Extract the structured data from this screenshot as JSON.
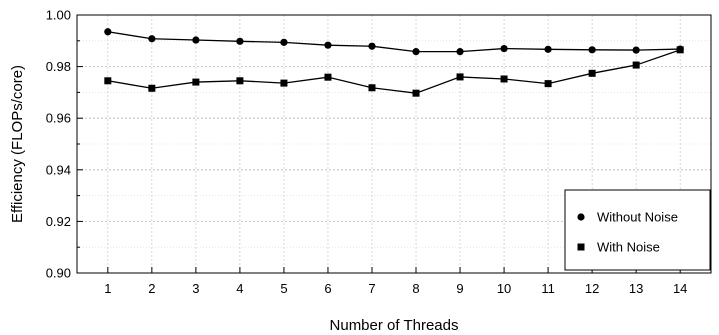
{
  "chart_data": {
    "type": "line",
    "title": "",
    "xlabel": "Number of Threads",
    "ylabel": "Efficiency (FLOPs/core)",
    "x": [
      1,
      2,
      3,
      4,
      5,
      6,
      7,
      8,
      9,
      10,
      11,
      12,
      13,
      14
    ],
    "x_tick_labels": [
      "1",
      "2",
      "3",
      "4",
      "5",
      "6",
      "7",
      "8",
      "9",
      "10",
      "11",
      "12",
      "13",
      "14"
    ],
    "xlim": [
      0.3,
      14.7
    ],
    "ylim": [
      0.9,
      1.0
    ],
    "y_ticks": [
      0.9,
      0.92,
      0.94,
      0.96,
      0.98,
      1.0
    ],
    "y_tick_labels": [
      "0.90",
      "0.92",
      "0.94",
      "0.96",
      "0.98",
      "1.00"
    ],
    "grid": true,
    "legend_position": "bottom-right",
    "series": [
      {
        "name": "Without Noise",
        "marker": "circle",
        "color": "#000000",
        "values": [
          0.9935,
          0.9908,
          0.9903,
          0.9898,
          0.9894,
          0.9883,
          0.9879,
          0.9858,
          0.9858,
          0.987,
          0.9867,
          0.9865,
          0.9864,
          0.9868
        ]
      },
      {
        "name": "With Noise",
        "marker": "square",
        "color": "#000000",
        "values": [
          0.9745,
          0.9716,
          0.974,
          0.9745,
          0.9736,
          0.9759,
          0.9718,
          0.9697,
          0.976,
          0.9752,
          0.9734,
          0.9774,
          0.9806,
          0.9865
        ]
      }
    ]
  }
}
